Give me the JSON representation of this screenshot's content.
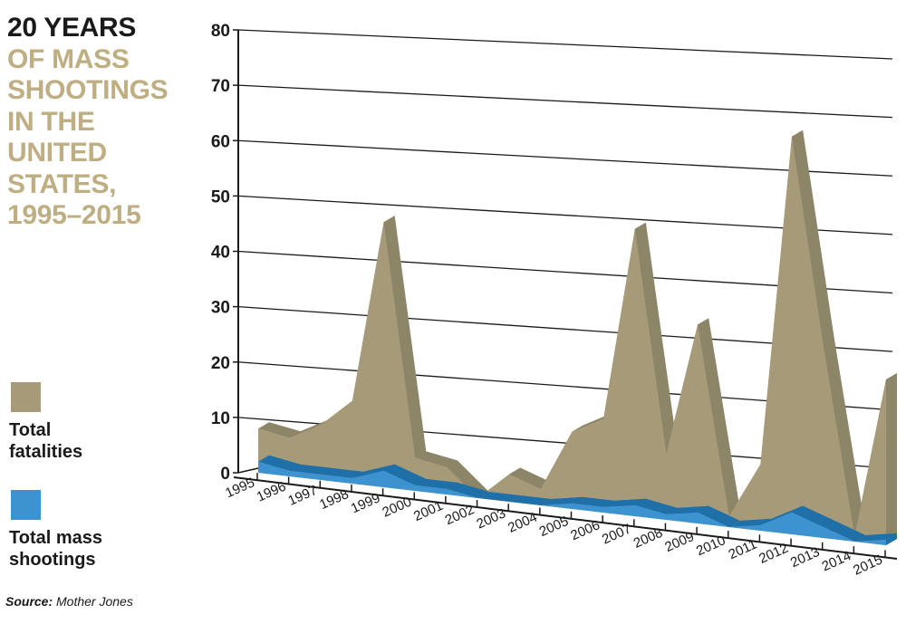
{
  "chart_data": {
    "type": "area",
    "title_line1": "20 YEARS",
    "title_rest": "OF MASS SHOOTINGS IN THE UNITED STATES, 1995–2015",
    "categories": [
      "1995",
      "1996",
      "1997",
      "1998",
      "1999",
      "2000",
      "2001",
      "2002",
      "2003",
      "2004",
      "2005",
      "2006",
      "2007",
      "2008",
      "2009",
      "2010",
      "2011",
      "2012",
      "2013",
      "2014",
      "2015"
    ],
    "yticks": [
      "0",
      "10",
      "20",
      "30",
      "40",
      "50",
      "60",
      "70",
      "80"
    ],
    "ylim": [
      0,
      80
    ],
    "series": [
      {
        "name": "Total fatalities",
        "color": "#a69a78",
        "side_color": "#8c8568",
        "values": [
          8,
          7,
          10,
          15,
          48,
          6,
          5,
          0,
          5,
          3,
          14,
          17,
          52,
          12,
          36,
          2,
          12,
          72,
          35,
          1,
          30
        ]
      },
      {
        "name": "Total mass shootings",
        "color": "#3d93d0",
        "side_color": "#1f6fa8",
        "values": [
          2,
          1,
          1,
          1,
          3,
          1,
          1,
          0,
          0,
          0,
          1,
          1,
          2,
          1,
          2,
          0,
          1,
          4,
          2,
          0,
          1
        ]
      }
    ],
    "legend_placement": "left",
    "source_label": "Source:",
    "source_value": "Mother Jones"
  }
}
